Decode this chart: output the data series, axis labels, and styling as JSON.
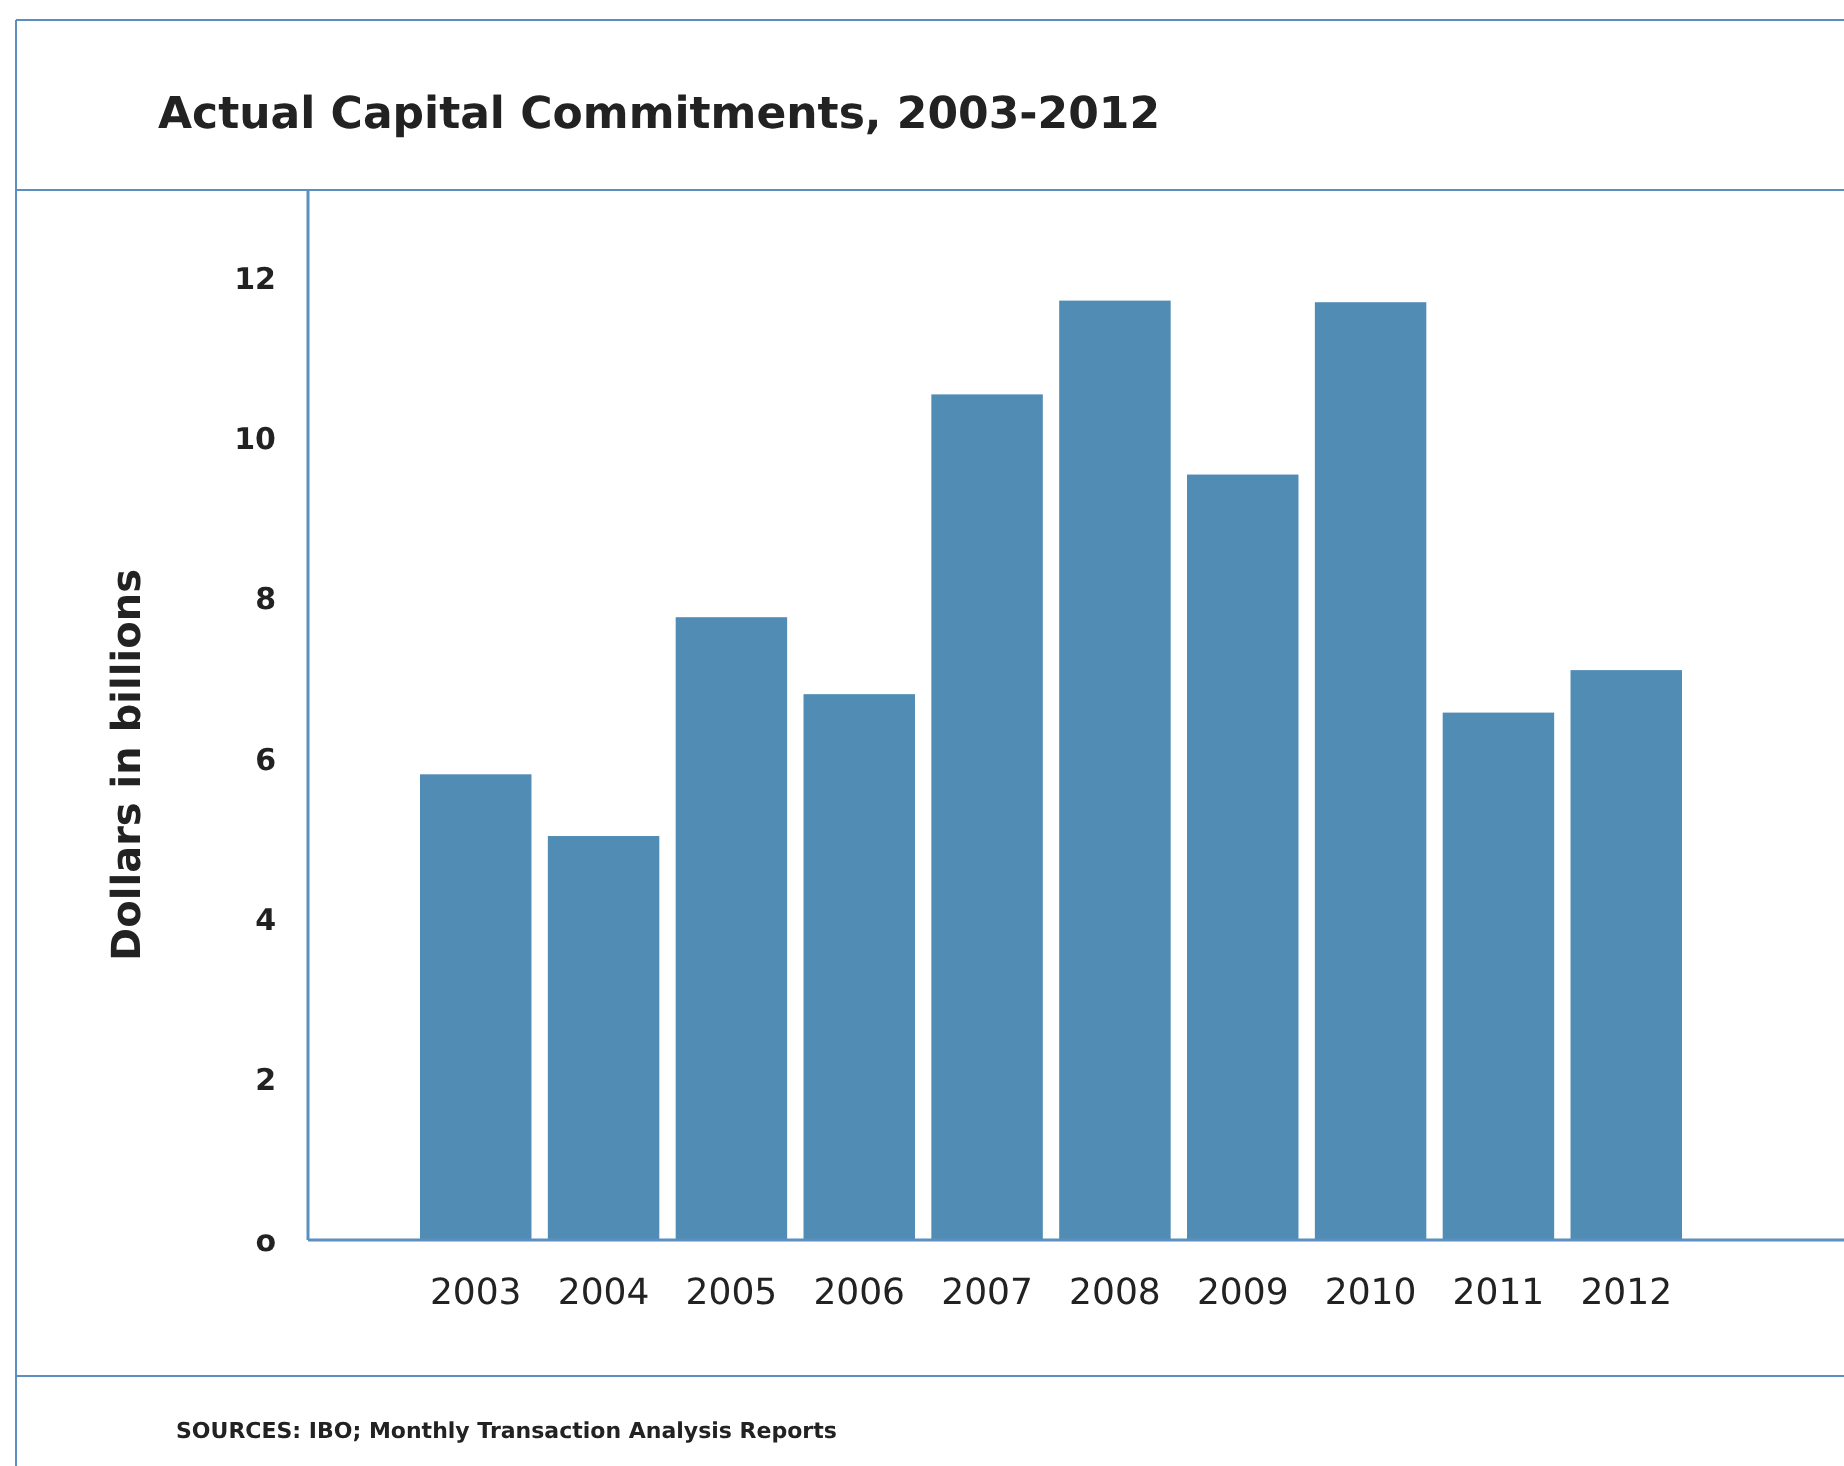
{
  "chart_data": {
    "type": "bar",
    "title": "Actual Capital Commitments, 2003-2012",
    "ylabel": "Dollars in billions",
    "categories": [
      "2003",
      "2004",
      "2005",
      "2006",
      "2007",
      "2008",
      "2009",
      "2010",
      "2011",
      "2012"
    ],
    "values": [
      5.81,
      5.04,
      7.77,
      6.81,
      10.55,
      11.72,
      9.55,
      11.7,
      6.58,
      7.11
    ],
    "color": "#518cb4",
    "ylim": [
      0,
      13.1
    ],
    "yticks": [
      {
        "value": 0,
        "label": "o"
      },
      2,
      4,
      6,
      8,
      10,
      12
    ],
    "grid": false,
    "annotations": [
      "SOURCES: IBO; Monthly Transaction Analysis Reports"
    ]
  }
}
